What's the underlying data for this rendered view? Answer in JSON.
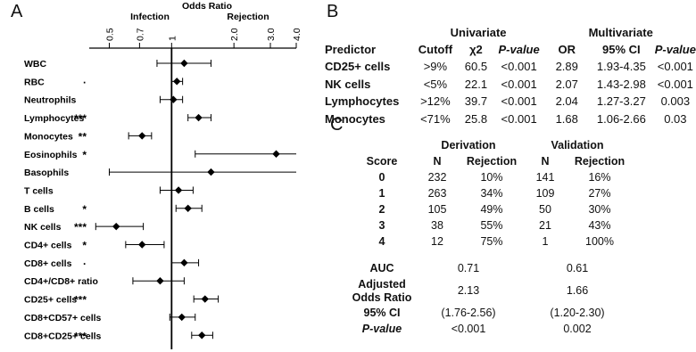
{
  "panels": {
    "a": "A",
    "b": "B",
    "c": "C"
  },
  "forest": {
    "title": "Odds Ratio",
    "left_label": "Infection",
    "right_label": "Rejection",
    "ticks": [
      "0.5",
      "0.7",
      "1",
      "2.0",
      "3.0",
      "4.0"
    ],
    "tick_values": [
      0.5,
      0.7,
      1,
      2.0,
      3.0,
      4.0
    ],
    "xlim": [
      0.4,
      4.0
    ],
    "scale": "log",
    "rows": [
      {
        "label": "WBC",
        "sig": "",
        "or": 1.15,
        "lo": 0.85,
        "hi": 1.55
      },
      {
        "label": "RBC",
        "sig": "·",
        "or": 1.06,
        "lo": 1.0,
        "hi": 1.13
      },
      {
        "label": "Neutrophils",
        "sig": "",
        "or": 1.02,
        "lo": 0.88,
        "hi": 1.13
      },
      {
        "label": "Lymphocytes",
        "sig": "***",
        "or": 1.35,
        "lo": 1.2,
        "hi": 1.55
      },
      {
        "label": "Monocytes",
        "sig": "**",
        "or": 0.72,
        "lo": 0.62,
        "hi": 0.8
      },
      {
        "label": "Eosinophils",
        "sig": "*",
        "or": 3.2,
        "lo": 1.3,
        "hi": 4.0
      },
      {
        "label": "Basophils",
        "sig": "",
        "or": 1.55,
        "lo": 0.5,
        "hi": 4.0
      },
      {
        "label": "T cells",
        "sig": "",
        "or": 1.08,
        "lo": 0.88,
        "hi": 1.27
      },
      {
        "label": "B cells",
        "sig": "*",
        "or": 1.2,
        "lo": 1.05,
        "hi": 1.4
      },
      {
        "label": "NK cells",
        "sig": "***",
        "or": 0.54,
        "lo": 0.43,
        "hi": 0.73
      },
      {
        "label": "CD4+ cells",
        "sig": "*",
        "or": 0.72,
        "lo": 0.6,
        "hi": 0.92
      },
      {
        "label": "CD8+ cells",
        "sig": "·",
        "or": 1.15,
        "lo": 1.0,
        "hi": 1.35
      },
      {
        "label": "CD4+/CD8+ ratio",
        "sig": "",
        "or": 0.88,
        "lo": 0.65,
        "hi": 1.15
      },
      {
        "label": "CD25+ cells",
        "sig": "***",
        "or": 1.45,
        "lo": 1.28,
        "hi": 1.68
      },
      {
        "label": "CD8+CD57+ cells",
        "sig": "",
        "or": 1.12,
        "lo": 0.98,
        "hi": 1.3
      },
      {
        "label": "CD8+CD25+ cells",
        "sig": "***",
        "or": 1.4,
        "lo": 1.25,
        "hi": 1.58
      }
    ]
  },
  "table_b": {
    "group_headers": {
      "univariate": "Univariate",
      "multivariate": "Multivariate"
    },
    "headers": [
      "Predictor",
      "Cutoff",
      "χ2",
      "P-value",
      "OR",
      "95% CI",
      "P-value"
    ],
    "rows": [
      [
        "CD25+ cells",
        ">9%",
        "60.5",
        "<0.001",
        "2.89",
        "1.93-4.35",
        "<0.001"
      ],
      [
        "NK cells",
        "<5%",
        "22.1",
        "<0.001",
        "2.07",
        "1.43-2.98",
        "<0.001"
      ],
      [
        "Lymphocytes",
        ">12%",
        "39.7",
        "<0.001",
        "2.04",
        "1.27-3.27",
        "0.003"
      ],
      [
        "Monocytes",
        "<71%",
        "25.8",
        "<0.001",
        "1.68",
        "1.06-2.66",
        "0.03"
      ]
    ]
  },
  "table_c": {
    "group_headers": {
      "derivation": "Derivation",
      "validation": "Validation"
    },
    "headers": [
      "Score",
      "N",
      "Rejection",
      "N",
      "Rejection"
    ],
    "rows": [
      [
        "0",
        "232",
        "10%",
        "141",
        "16%"
      ],
      [
        "1",
        "263",
        "34%",
        "109",
        "27%"
      ],
      [
        "2",
        "105",
        "49%",
        "50",
        "30%"
      ],
      [
        "3",
        "38",
        "55%",
        "21",
        "43%"
      ],
      [
        "4",
        "12",
        "75%",
        "1",
        "100%"
      ]
    ],
    "summary": {
      "auc_label": "AUC",
      "auc_deriv": "0.71",
      "auc_valid": "0.61",
      "aor_label_1": "Adjusted",
      "aor_label_2": "Odds Ratio",
      "aor_deriv": "2.13",
      "aor_valid": "1.66",
      "ci_label": "95% CI",
      "ci_deriv": "(1.76-2.56)",
      "ci_valid": "(1.20-2.30)",
      "p_label": "P-value",
      "p_deriv": "<0.001",
      "p_valid": "0.002"
    }
  }
}
